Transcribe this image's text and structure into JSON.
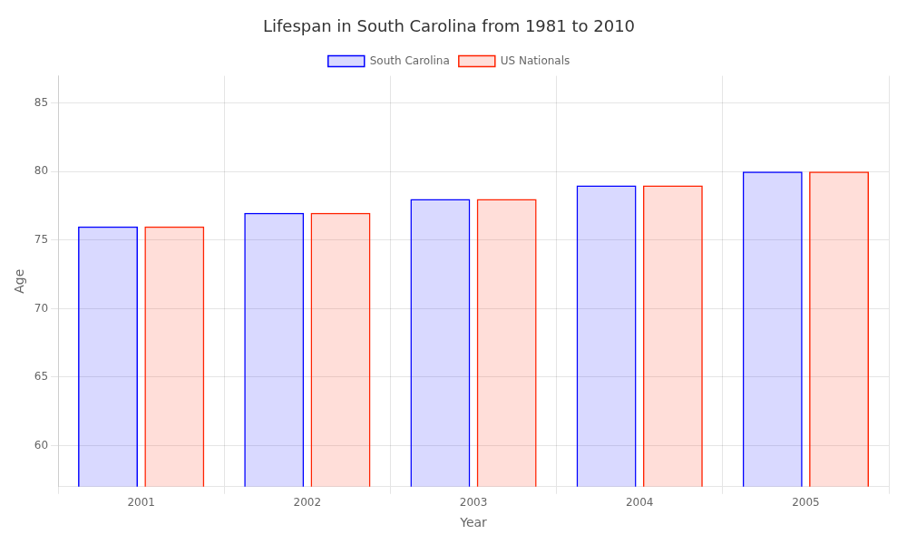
{
  "chart_data": {
    "type": "bar",
    "title": "Lifespan in South Carolina from 1981 to 2010",
    "x_label": "Year",
    "y_label": "Age",
    "categories": [
      "2001",
      "2002",
      "2003",
      "2004",
      "2005"
    ],
    "series": [
      {
        "name": "South Carolina",
        "color": "#0000ff",
        "values": [
          76.0,
          77.0,
          78.0,
          79.0,
          80.0
        ]
      },
      {
        "name": "US Nationals",
        "color": "#ff2200",
        "values": [
          76.0,
          77.0,
          78.0,
          79.0,
          80.0
        ]
      }
    ],
    "ylim": [
      57,
      87
    ],
    "yticks": [
      60,
      65,
      70,
      75,
      80,
      85
    ],
    "grid": true,
    "legend": "top"
  }
}
